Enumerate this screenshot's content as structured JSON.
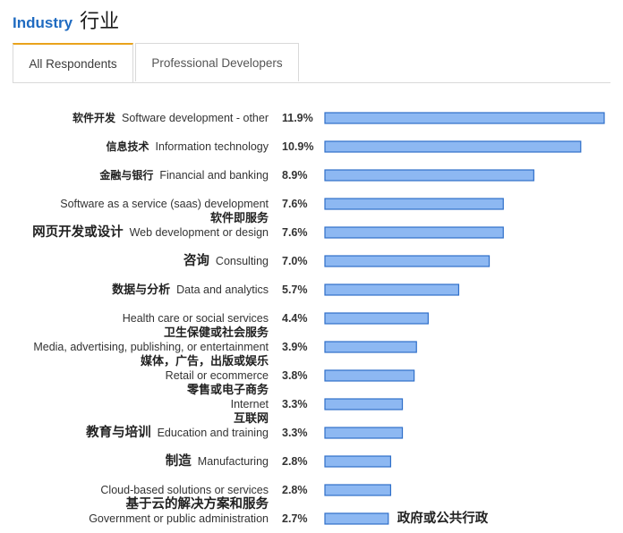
{
  "header": {
    "title_en": "Industry",
    "title_zh": "行业"
  },
  "tabs": [
    {
      "label": "All Respondents",
      "active": true
    },
    {
      "label": "Professional Developers",
      "active": false
    }
  ],
  "colors": {
    "bar_fill": "#8db8f2",
    "bar_stroke": "#2f6fc9",
    "title": "#1f6bc1",
    "active_tab_accent": "#e9a31b"
  },
  "chart_data": {
    "type": "bar",
    "orientation": "horizontal",
    "title": "",
    "xlabel": "",
    "ylabel": "",
    "xlim": [
      0,
      11.9
    ],
    "grid": false,
    "categories": [
      "Software development - other",
      "Information technology",
      "Financial and banking",
      "Software as a service (saas) development",
      "Web development or design",
      "Consulting",
      "Data and analytics",
      "Health care or social services",
      "Media, advertising, publishing, or entertainment",
      "Retail or ecommerce",
      "Internet",
      "Education and training",
      "Manufacturing",
      "Cloud-based solutions or services",
      "Government or public administration"
    ],
    "categories_zh": [
      "软件开发",
      "信息技术",
      "金融与银行",
      "软件即服务",
      "网页开发或设计",
      "咨询",
      "数据与分析",
      "卫生保健或社会服务",
      "媒体，广告，出版或娱乐",
      "零售或电子商务",
      "互联网",
      "教育与培训",
      "制造",
      "基于云的解决方案和服务",
      "政府或公共行政"
    ],
    "values": [
      11.9,
      10.9,
      8.9,
      7.6,
      7.6,
      7.0,
      5.7,
      4.4,
      3.9,
      3.8,
      3.3,
      3.3,
      2.8,
      2.8,
      2.7
    ],
    "value_labels": [
      "11.9%",
      "10.9%",
      "8.9%",
      "7.6%",
      "7.6%",
      "7.0%",
      "5.7%",
      "4.4%",
      "3.9%",
      "3.8%",
      "3.3%",
      "3.3%",
      "2.8%",
      "2.8%",
      "2.7%"
    ]
  }
}
